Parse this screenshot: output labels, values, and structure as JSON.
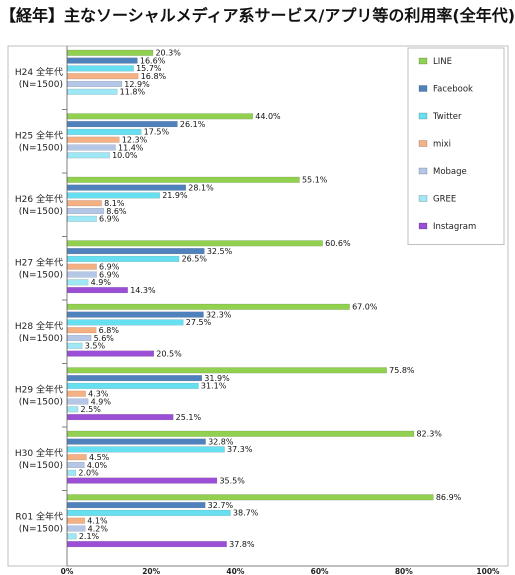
{
  "title": "【経年】主なソーシャルメディア系サービス/アプリ等の利用率(全年代)",
  "chart_data": {
    "type": "bar",
    "orientation": "horizontal",
    "xlim": [
      0,
      100
    ],
    "x_ticks": [
      "0%",
      "20%",
      "40%",
      "60%",
      "80%",
      "100%"
    ],
    "grid": false,
    "legend_position": "top-right",
    "groups": [
      {
        "line1": "H24 全年代",
        "line2": "(N=1500)"
      },
      {
        "line1": "H25 全年代",
        "line2": "(N=1500)"
      },
      {
        "line1": "H26 全年代",
        "line2": "(N=1500)"
      },
      {
        "line1": "H27 全年代",
        "line2": "(N=1500)"
      },
      {
        "line1": "H28 全年代",
        "line2": "(N=1500)"
      },
      {
        "line1": "H29 全年代",
        "line2": "(N=1500)"
      },
      {
        "line1": "H30 全年代",
        "line2": "(N=1500)"
      },
      {
        "line1": "R01 全年代",
        "line2": "(N=1500)"
      }
    ],
    "series": [
      {
        "name": "LINE",
        "color": "#92d050",
        "values": [
          20.3,
          44.0,
          55.1,
          60.6,
          67.0,
          75.8,
          82.3,
          86.9
        ]
      },
      {
        "name": "Facebook",
        "color": "#4f81bd",
        "values": [
          16.6,
          26.1,
          28.1,
          32.5,
          32.3,
          31.9,
          32.8,
          32.7
        ]
      },
      {
        "name": "Twitter",
        "color": "#66e0f0",
        "values": [
          15.7,
          17.5,
          21.9,
          26.5,
          27.5,
          31.1,
          37.3,
          38.7
        ]
      },
      {
        "name": "mixi",
        "color": "#f4b183",
        "values": [
          16.8,
          12.3,
          8.1,
          6.9,
          6.8,
          4.3,
          4.5,
          4.1
        ]
      },
      {
        "name": "Mobage",
        "color": "#b4c7e7",
        "values": [
          12.9,
          11.4,
          8.6,
          6.9,
          5.6,
          4.9,
          4.0,
          4.2
        ]
      },
      {
        "name": "GREE",
        "color": "#9fe7f5",
        "values": [
          11.8,
          10.0,
          6.9,
          4.9,
          3.5,
          2.5,
          2.0,
          2.1
        ]
      },
      {
        "name": "Instagram",
        "color": "#9b4fd6",
        "values": [
          null,
          null,
          null,
          14.3,
          20.5,
          25.1,
          35.5,
          37.8
        ]
      }
    ]
  }
}
